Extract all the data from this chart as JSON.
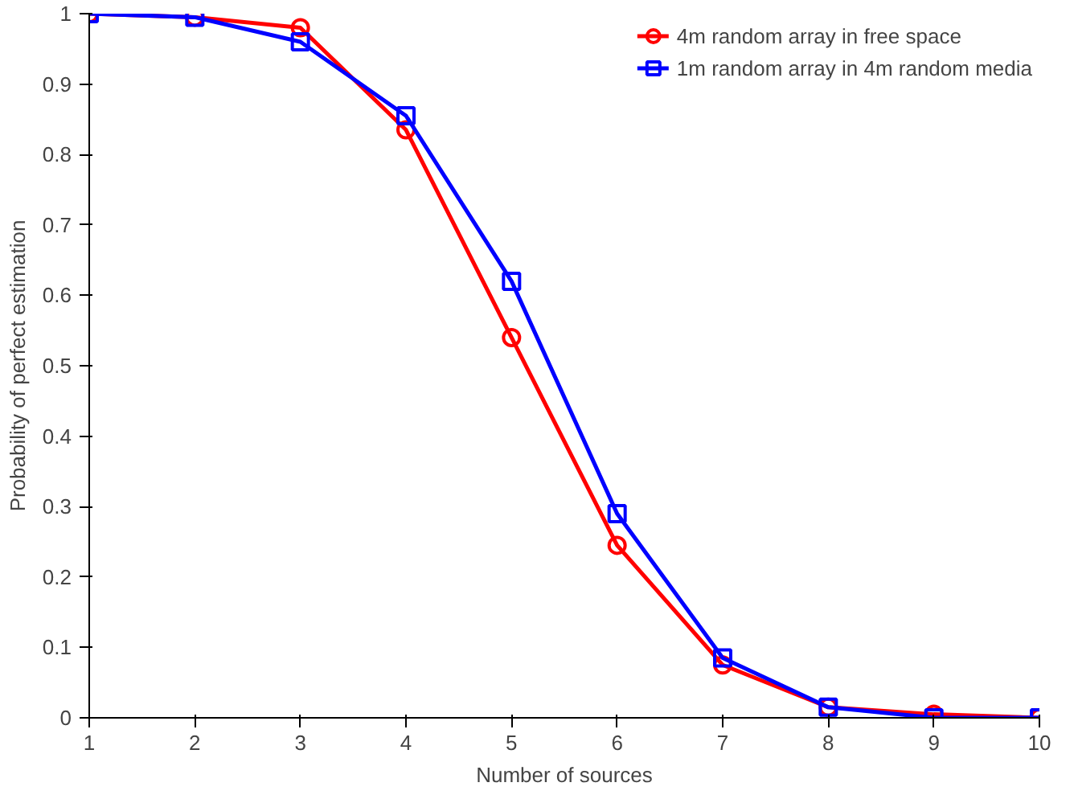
{
  "chart_data": {
    "type": "line",
    "xlabel": "Number of sources",
    "ylabel": "Probability of perfect estimation",
    "x": [
      1,
      2,
      3,
      4,
      5,
      6,
      7,
      8,
      9,
      10
    ],
    "series": [
      {
        "name": "4m random array in free space",
        "color": "#ff0000",
        "marker": "circle",
        "values": [
          1,
          0.995,
          0.98,
          0.835,
          0.54,
          0.245,
          0.075,
          0.015,
          0.005,
          0
        ]
      },
      {
        "name": "1m random array in 4m random media",
        "color": "#0000ff",
        "marker": "square",
        "values": [
          1,
          0.995,
          0.96,
          0.855,
          0.62,
          0.29,
          0.085,
          0.015,
          0,
          0
        ]
      }
    ],
    "xlim": [
      1,
      10
    ],
    "xticks": [
      1,
      2,
      3,
      4,
      5,
      6,
      7,
      8,
      9,
      10
    ],
    "ylim": [
      0,
      1
    ],
    "yticks": [
      0,
      0.1,
      0.2,
      0.3,
      0.4,
      0.5,
      0.6,
      0.7,
      0.8,
      0.9,
      1
    ],
    "grid": false,
    "legend": "top right",
    "line_style": "solid"
  }
}
